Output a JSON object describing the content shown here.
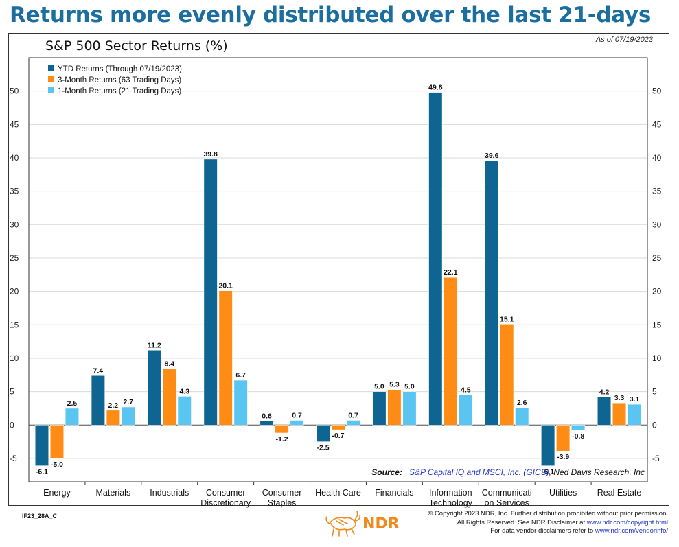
{
  "headline": "Returns more evenly distributed over the last 21-days",
  "as_of": "As of 07/19/2023",
  "source": {
    "label": "Source:",
    "link_text": "S&P Capital IQ and MSCI, Inc. (GICS)",
    "suffix": ", Ned Davis Research, Inc"
  },
  "footer": {
    "code": "IF23_28A_C",
    "brand": "NDR",
    "copyright_line1": "© Copyright 2023 NDR, Inc. Further distribution prohibited without prior permission.",
    "copyright_line2_prefix": "All Rights Reserved. See NDR Disclaimer at ",
    "copyright_line2_link": "www.ndr.com/copyright.html",
    "copyright_line3_prefix": "For data vendor disclaimers refer to ",
    "copyright_line3_link": "www.ndr.com/vendorinfo/"
  },
  "colors": {
    "headline": "#1b6e9e",
    "series": [
      "#0f6591",
      "#ff8c14",
      "#5bc5f2"
    ],
    "grid": "#d9d9d9"
  },
  "chart_data": {
    "type": "bar",
    "title": "S&P 500 Sector Returns (%)",
    "categories": [
      [
        "Energy"
      ],
      [
        "Materials"
      ],
      [
        "Industrials"
      ],
      [
        "Consumer",
        "Discretionary"
      ],
      [
        "Consumer",
        "Staples"
      ],
      [
        "Health Care"
      ],
      [
        "Financials"
      ],
      [
        "Information",
        "Technology"
      ],
      [
        "Communicati",
        "on Services"
      ],
      [
        "Utilities"
      ],
      [
        "Real Estate"
      ]
    ],
    "series": [
      {
        "name": "YTD Returns (Through 07/19/2023)",
        "values": [
          -6.1,
          7.4,
          11.2,
          39.8,
          0.6,
          -2.5,
          5.0,
          49.8,
          39.6,
          -6.1,
          4.2
        ]
      },
      {
        "name": "3-Month Returns (63 Trading Days)",
        "values": [
          -5.0,
          2.2,
          8.4,
          20.1,
          -1.2,
          -0.7,
          5.3,
          22.1,
          15.1,
          -3.9,
          3.3
        ]
      },
      {
        "name": "1-Month Returns (21 Trading Days)",
        "values": [
          2.5,
          2.7,
          4.3,
          6.7,
          0.7,
          0.7,
          5.0,
          4.5,
          2.6,
          -0.8,
          3.1
        ]
      }
    ],
    "ylim": [
      -8.5,
      55
    ],
    "yticks": [
      -5,
      0,
      5,
      10,
      15,
      20,
      25,
      30,
      35,
      40,
      45,
      50
    ],
    "grid": true,
    "legend": "top-left",
    "ylabel": "",
    "xlabel": ""
  }
}
